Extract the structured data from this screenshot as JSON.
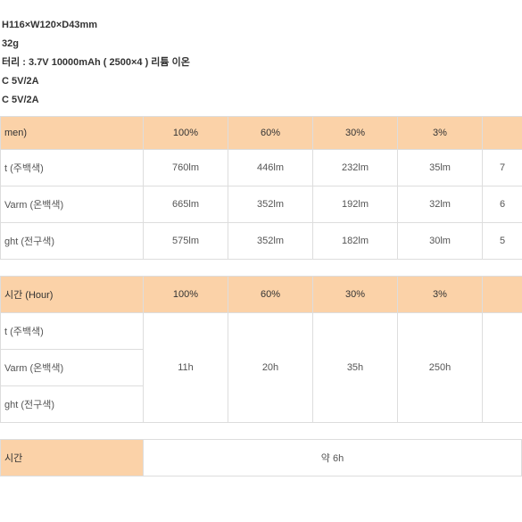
{
  "specs": {
    "dim_label": "H116×W120×D43mm",
    "weight": "32g",
    "battery": "터리 : 3.7V 10000mAh ( 2500×4 ) 리튬 이온",
    "input": "C 5V/2A",
    "output": "C 5V/2A"
  },
  "lumen_table": {
    "header_main": "men)",
    "col_100": "100%",
    "col_60": "60%",
    "col_30": "30%",
    "col_3": "3%",
    "rows": [
      {
        "label": "t (주백색)",
        "v100": "760lm",
        "v60": "446lm",
        "v30": "232lm",
        "v3": "35lm",
        "vlast": "7"
      },
      {
        "label": "Varm (온백색)",
        "v100": "665lm",
        "v60": "352lm",
        "v30": "192lm",
        "v3": "32lm",
        "vlast": "6"
      },
      {
        "label": "ght (전구색)",
        "v100": "575lm",
        "v60": "352lm",
        "v30": "182lm",
        "v3": "30lm",
        "vlast": "5"
      }
    ]
  },
  "hour_table": {
    "header_main": "시간 (Hour)",
    "col_100": "100%",
    "col_60": "60%",
    "col_30": "30%",
    "col_3": "3%",
    "row1_label": "t (주백색)",
    "row2_label": "Varm (온백색)",
    "row3_label": "ght (전구색)",
    "v100": "11h",
    "v60": "20h",
    "v30": "35h",
    "v3": "250h"
  },
  "charge": {
    "label": "시간",
    "value": "약 6h"
  }
}
